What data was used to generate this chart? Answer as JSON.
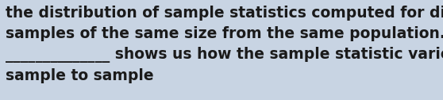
{
  "line1": "the distribution of sample statistics computed for different",
  "line2": "samples of the same size from the same population. A",
  "line3": "______________ shows us how the sample statistic varies from",
  "line4": "sample to sample",
  "background_color": "#c8d4e3",
  "text_color": "#1a1a1a",
  "font_size": 13.5,
  "figwidth": 5.58,
  "figheight": 1.26
}
